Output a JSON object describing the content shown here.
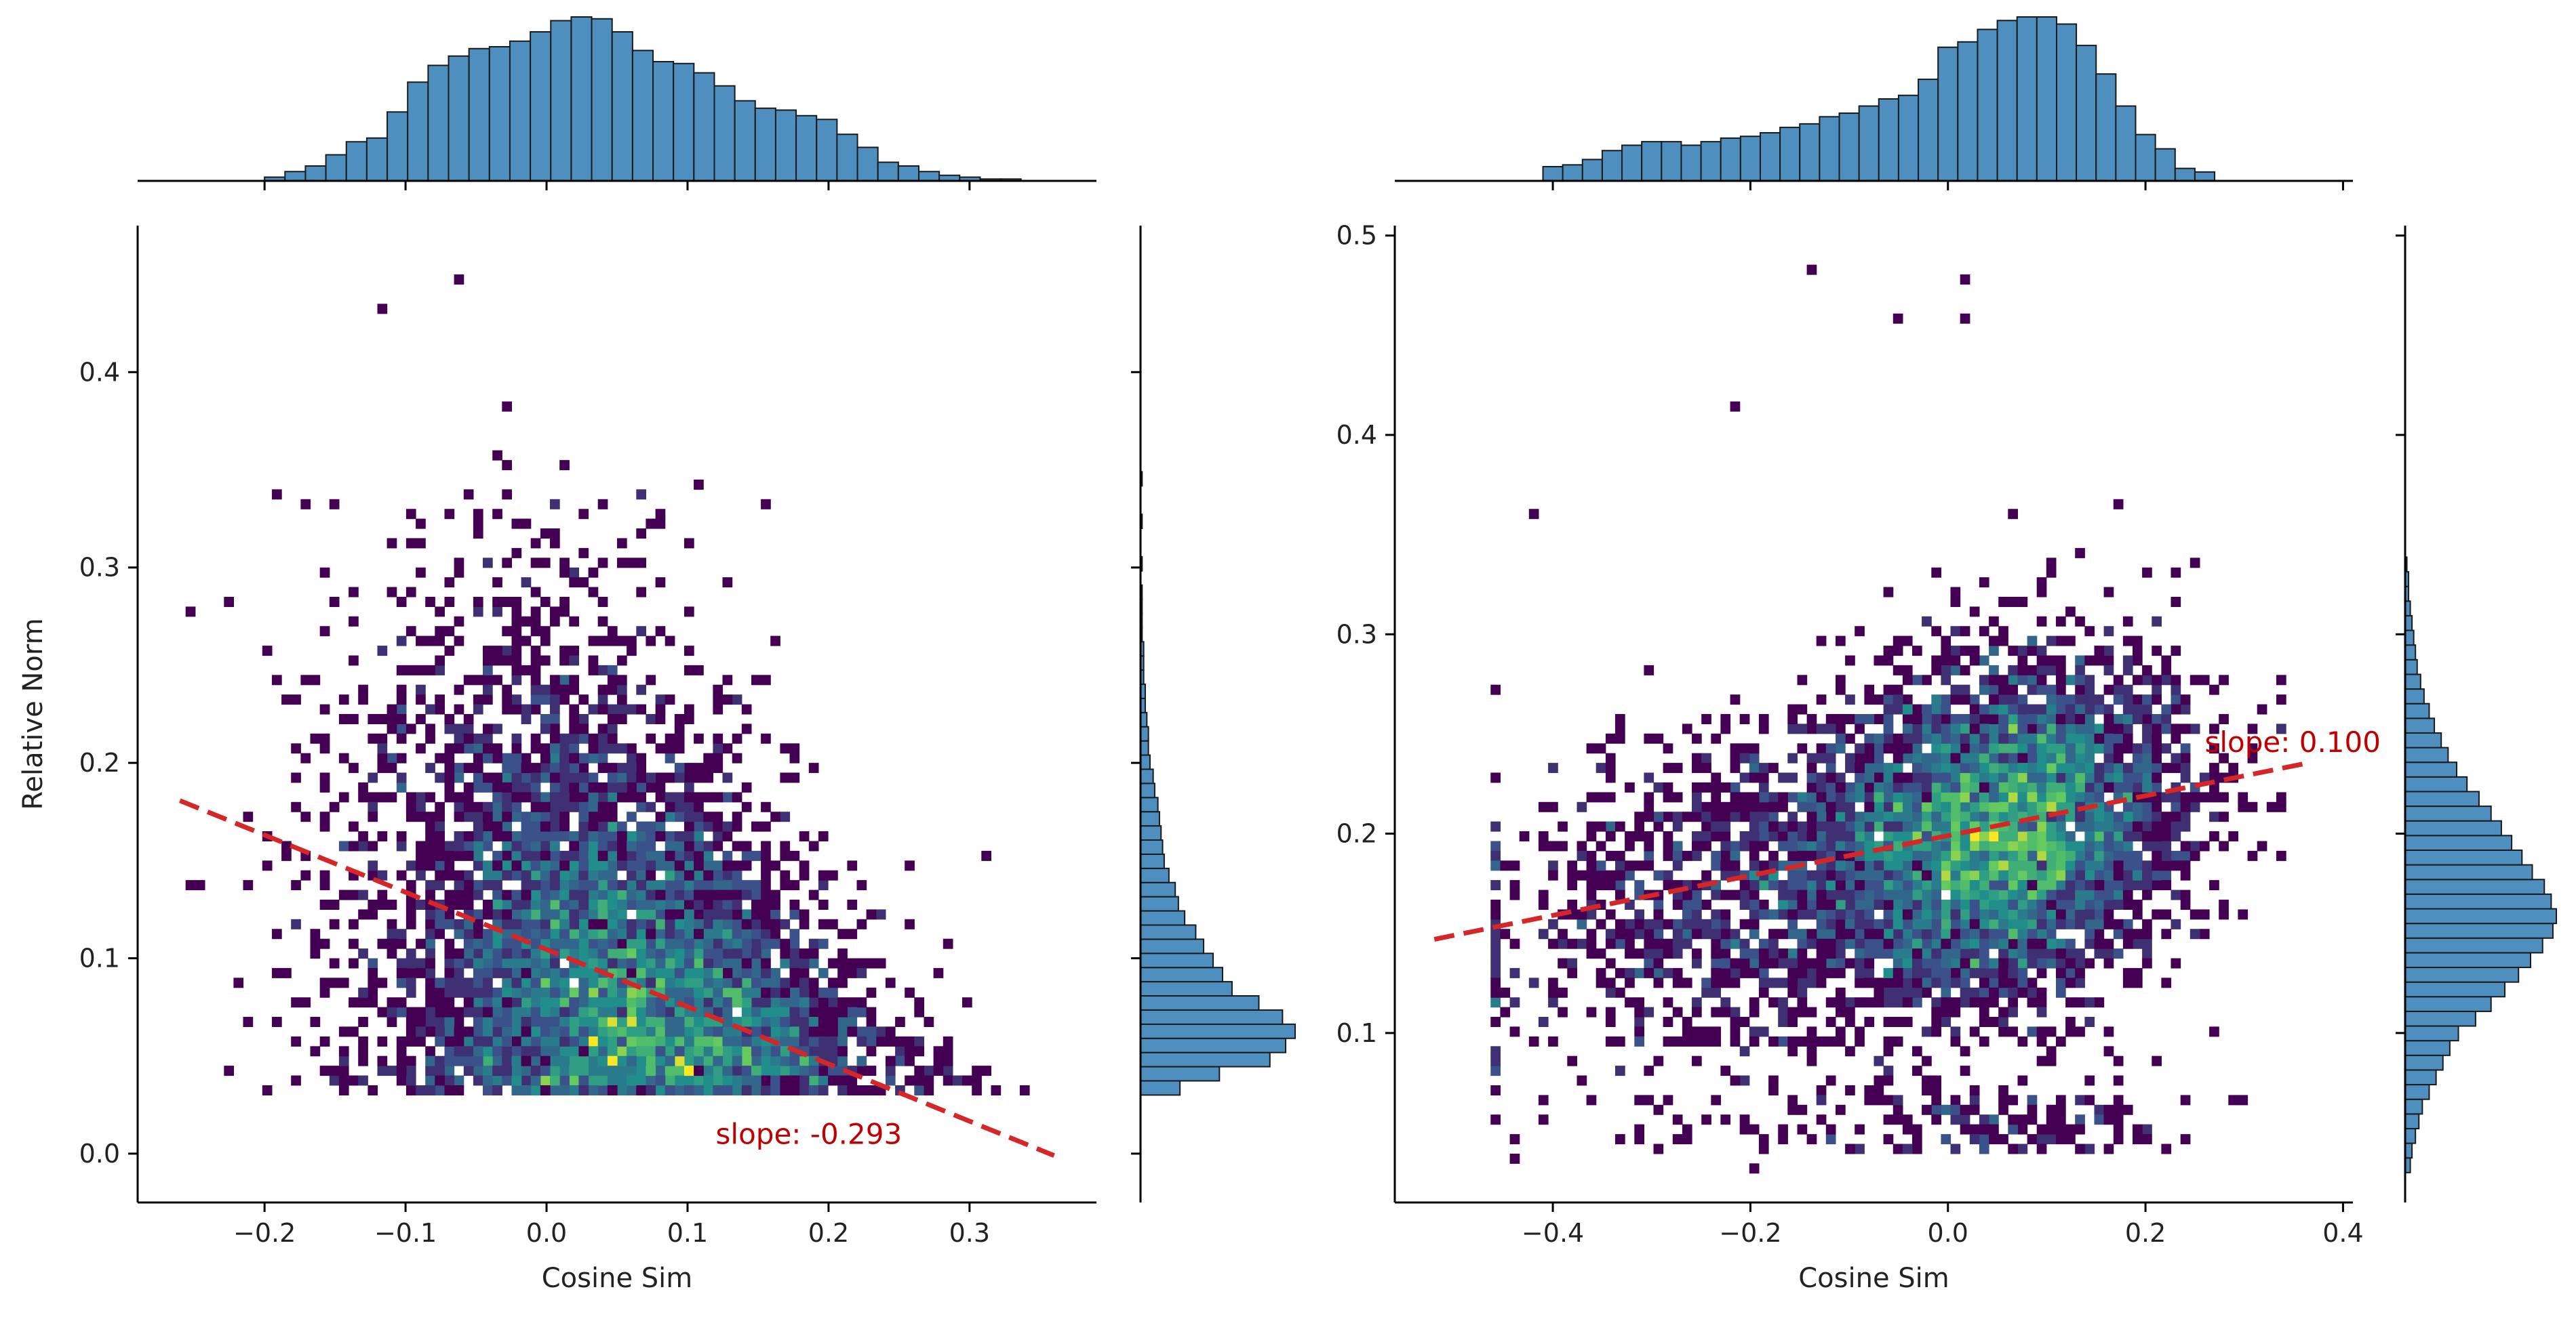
{
  "colors": {
    "hist_fill": "#4f8fc0",
    "hist_edge": "#1a1a1a",
    "fit_line": "#d62728",
    "slope_text": "#c00000",
    "axis": "#000000",
    "cmap": [
      "#440154",
      "#3b528b",
      "#21918c",
      "#5ec962",
      "#fde725"
    ]
  },
  "chart_data": [
    {
      "type": "joint_hist2d",
      "name": "left",
      "title": "",
      "xlabel": "Cosine Sim",
      "ylabel": "Relative Norm",
      "xlim": [
        -0.29,
        0.39
      ],
      "ylim": [
        -0.025,
        0.475
      ],
      "xticks": [
        -0.2,
        -0.1,
        0.0,
        0.1,
        0.2,
        0.3
      ],
      "xtick_labels": [
        "−0.2",
        "−0.1",
        "0.0",
        "0.1",
        "0.2",
        "0.3"
      ],
      "yticks": [
        0.0,
        0.1,
        0.2,
        0.3,
        0.4
      ],
      "ytick_labels": [
        "0.0",
        "0.1",
        "0.2",
        "0.3",
        "0.4"
      ],
      "regression": {
        "slope": -0.293,
        "intercept": 0.1045,
        "x_range": [
          -0.26,
          0.36
        ]
      },
      "slope_label": "slope: -0.293",
      "slope_label_anchor": {
        "x": 0.12,
        "y": 0.005
      },
      "marginal_x": {
        "bin_start": -0.2,
        "bin_width": 0.0145,
        "counts": [
          2,
          5,
          8,
          14,
          21,
          23,
          37,
          53,
          62,
          67,
          71,
          72,
          75,
          80,
          86,
          88,
          87,
          80,
          70,
          64,
          63,
          58,
          51,
          43,
          39,
          38,
          35,
          33,
          25,
          18,
          10,
          8,
          5,
          3,
          2,
          1,
          1
        ]
      },
      "marginal_y": {
        "bin_start": 0.03,
        "bin_width": 0.00725,
        "counts": [
          25,
          50,
          82,
          92,
          98,
          90,
          75,
          58,
          52,
          46,
          40,
          35,
          28,
          24,
          22,
          18,
          15,
          14,
          13,
          12,
          11,
          9,
          8,
          6,
          5,
          5,
          4,
          3,
          3,
          2,
          2,
          2,
          1,
          1,
          1,
          1,
          0,
          1,
          0,
          0,
          1,
          0,
          0,
          1,
          0,
          0
        ]
      }
    },
    {
      "type": "joint_hist2d",
      "name": "right",
      "title": "",
      "xlabel": "Cosine Sim",
      "ylabel": "",
      "xlim": [
        -0.56,
        0.41
      ],
      "ylim": [
        0.015,
        0.505
      ],
      "xticks": [
        -0.4,
        -0.2,
        0.0,
        0.2,
        0.4
      ],
      "xtick_labels": [
        "−0.4",
        "−0.2",
        "0.0",
        "0.2",
        "0.4"
      ],
      "yticks": [
        0.1,
        0.2,
        0.3,
        0.4,
        0.5
      ],
      "ytick_labels": [
        "0.1",
        "0.2",
        "0.3",
        "0.4",
        "0.5"
      ],
      "regression": {
        "slope": 0.1,
        "intercept": 0.199,
        "x_range": [
          -0.52,
          0.36
        ]
      },
      "slope_label": "slope: 0.100",
      "slope_label_anchor": {
        "x": 0.26,
        "y": 0.241
      },
      "marginal_x": {
        "bin_start": -0.41,
        "bin_width": 0.02,
        "counts": [
          8,
          9,
          12,
          17,
          20,
          22,
          22,
          20,
          22,
          24,
          25,
          27,
          30,
          32,
          36,
          38,
          42,
          46,
          48,
          57,
          75,
          78,
          85,
          90,
          92,
          92,
          88,
          76,
          60,
          42,
          26,
          18,
          7,
          5
        ]
      },
      "marginal_y": {
        "bin_start": 0.03,
        "bin_width": 0.00735,
        "counts": [
          3,
          4,
          6,
          8,
          10,
          14,
          18,
          22,
          26,
          31,
          41,
          50,
          58,
          66,
          73,
          80,
          86,
          88,
          85,
          81,
          74,
          68,
          62,
          56,
          50,
          43,
          36,
          30,
          25,
          21,
          17,
          14,
          11,
          9,
          7,
          6,
          5,
          4,
          3,
          2,
          2,
          1
        ]
      }
    }
  ]
}
